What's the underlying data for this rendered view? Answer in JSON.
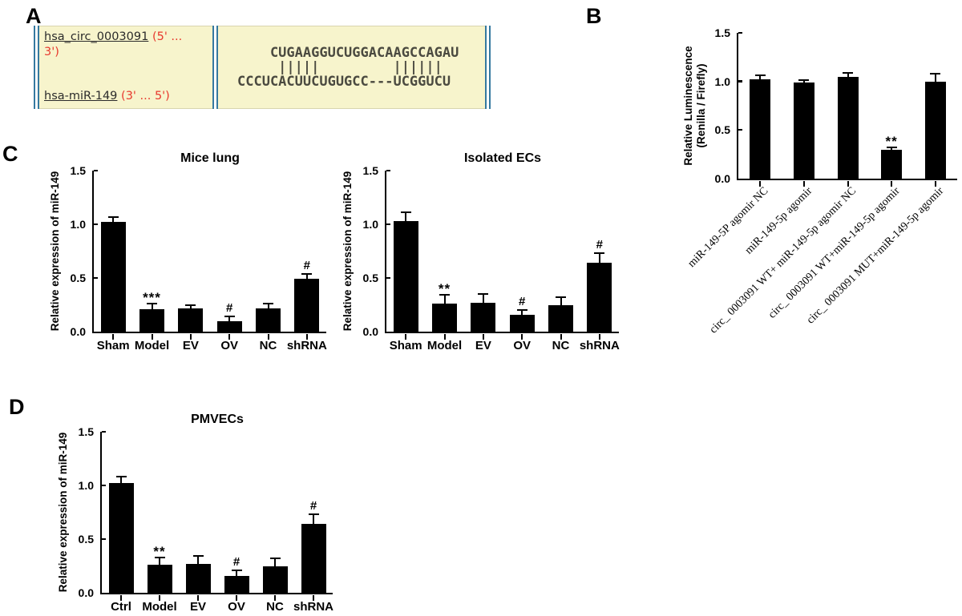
{
  "figure": {
    "panel_letters": {
      "a": "A",
      "b": "B",
      "c": "C",
      "d": "D"
    }
  },
  "panel_a": {
    "circ_name": "hsa_circ_0003091",
    "circ_orientation": "(5' ...",
    "circ_orientation_2": "3')",
    "mir_name": "hsa-miR-149",
    "mir_orientation": "(3' ... 5')",
    "alignment_block": "    CUGAAGGUCUGGACAAGCCAGAU\n     |||||         ||||||\nCCCUCACUUCUGUGCC---UCGGUCU",
    "colors": {
      "box_bg": "#f7f4cc",
      "border_blue": "#3579a0",
      "accent_red": "#e8392e",
      "seq_text": "#4b4a40"
    }
  },
  "chart_data": [
    {
      "id": "B",
      "type": "bar",
      "title": "",
      "ylabel_lines": [
        "Relative Luminescence",
        "(Renilla / Firefly)"
      ],
      "categories": [
        "miR-149-5P agomir NC",
        "miR-149-5p agomir",
        "circ_ 0003091 WT+ miR-149-5p agomir NC",
        "circ_ 0003091 WT+miR-149-5p agomir",
        "circ_ 0003091 MUT+miR-149-5p agomir"
      ],
      "values": [
        1.02,
        0.99,
        1.05,
        0.3,
        1.0
      ],
      "errors": [
        0.04,
        0.02,
        0.04,
        0.02,
        0.08
      ],
      "annotations": [
        "",
        "",
        "",
        "**",
        ""
      ],
      "ylim": [
        0,
        1.5
      ],
      "yticks": [
        0,
        0.5,
        1,
        1.5
      ],
      "bar_color": "#000000",
      "xlabel_style": "rotated45",
      "grid": false
    },
    {
      "id": "C-left",
      "type": "bar",
      "title": "Mice lung",
      "ylabel_lines": [
        "Relative expression of miR-149"
      ],
      "categories": [
        "Sham",
        "Model",
        "EV",
        "OV",
        "NC",
        "shRNA"
      ],
      "values": [
        1.02,
        0.21,
        0.22,
        0.1,
        0.22,
        0.49
      ],
      "errors": [
        0.05,
        0.05,
        0.03,
        0.04,
        0.04,
        0.05
      ],
      "annotations": [
        "",
        "***",
        "",
        "#",
        "",
        "#"
      ],
      "ylim": [
        0,
        1.5
      ],
      "yticks": [
        0,
        0.5,
        1,
        1.5
      ],
      "bar_color": "#000000",
      "xlabel_style": "horizontal",
      "grid": false
    },
    {
      "id": "C-right",
      "type": "bar",
      "title": "Isolated ECs",
      "ylabel_lines": [
        "Relative expression of miR-149"
      ],
      "categories": [
        "Sham",
        "Model",
        "EV",
        "OV",
        "NC",
        "shRNA"
      ],
      "values": [
        1.03,
        0.26,
        0.27,
        0.16,
        0.25,
        0.64
      ],
      "errors": [
        0.08,
        0.08,
        0.08,
        0.04,
        0.07,
        0.09
      ],
      "annotations": [
        "",
        "**",
        "",
        "#",
        "",
        "#"
      ],
      "ylim": [
        0,
        1.5
      ],
      "yticks": [
        0,
        0.5,
        1,
        1.5
      ],
      "bar_color": "#000000",
      "xlabel_style": "horizontal",
      "grid": false
    },
    {
      "id": "D",
      "type": "bar",
      "title": "PMVECs",
      "ylabel_lines": [
        "Relative expression of miR-149"
      ],
      "categories": [
        "Ctrl",
        "Model",
        "EV",
        "OV",
        "NC",
        "shRNA"
      ],
      "values": [
        1.02,
        0.26,
        0.27,
        0.16,
        0.25,
        0.64
      ],
      "errors": [
        0.06,
        0.07,
        0.07,
        0.05,
        0.07,
        0.09
      ],
      "annotations": [
        "",
        "**",
        "",
        "#",
        "",
        "#"
      ],
      "ylim": [
        0,
        1.5
      ],
      "yticks": [
        0,
        0.5,
        1,
        1.5
      ],
      "bar_color": "#000000",
      "xlabel_style": "horizontal",
      "grid": false
    }
  ]
}
